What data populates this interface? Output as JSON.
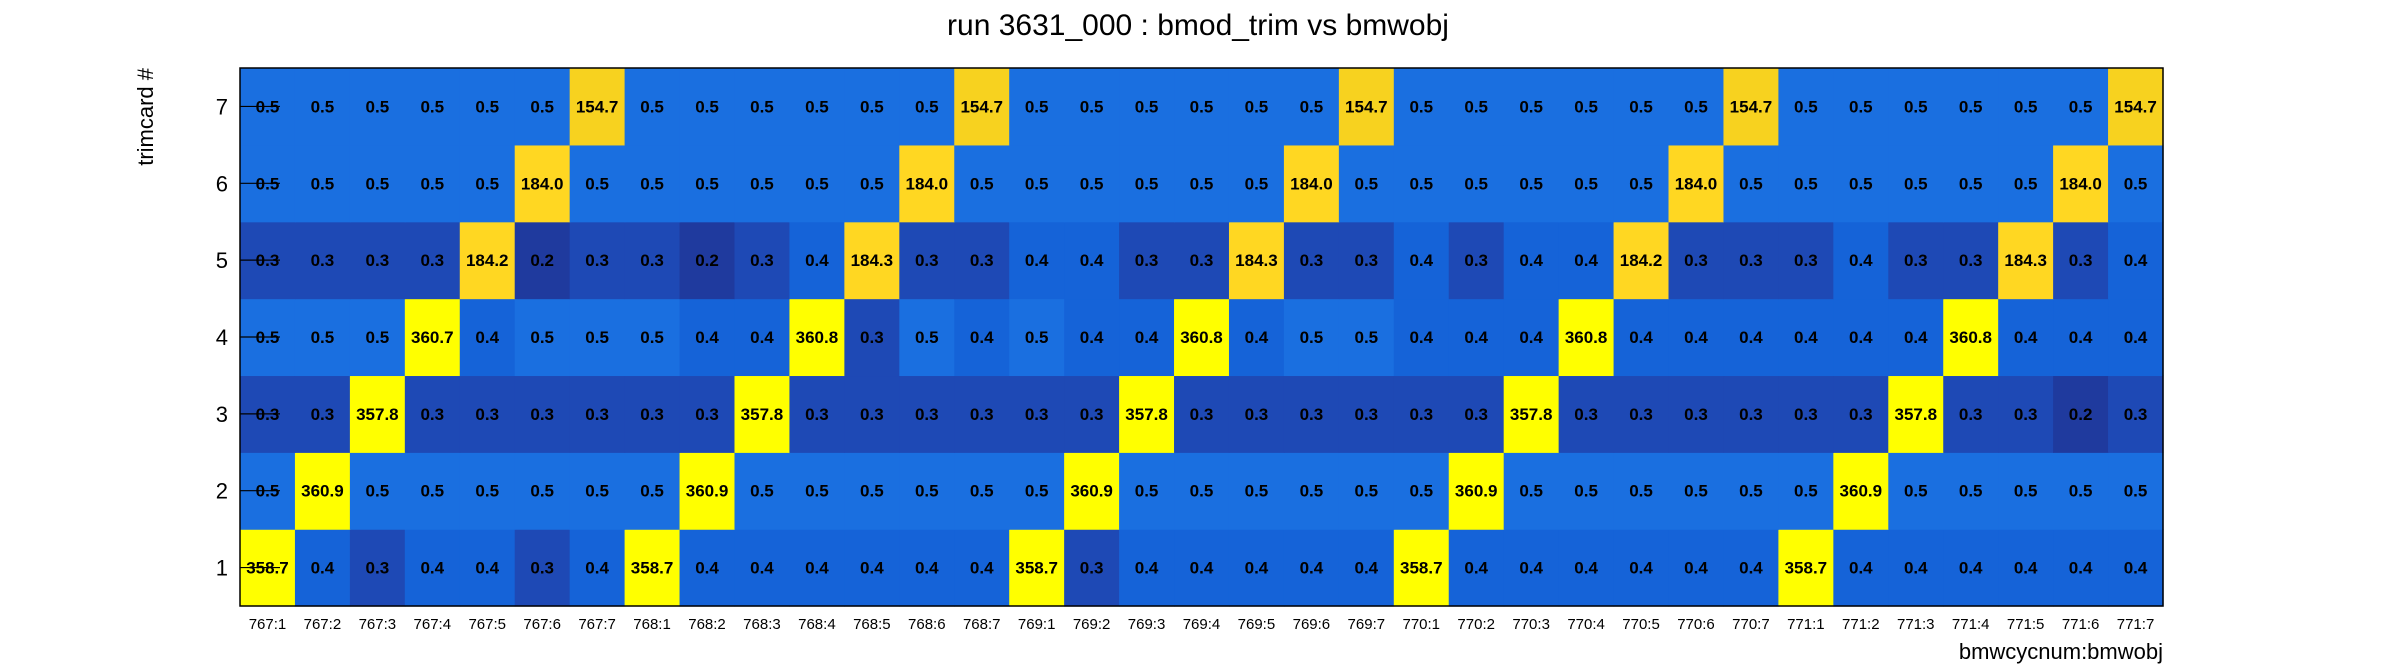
{
  "chart_data": {
    "type": "heatmap",
    "title": "run 3631_000 : bmod_trim vs bmwobj",
    "xlabel": "bmwcycnum:bmwobj",
    "ylabel": "trimcard #",
    "categories": [
      "767:1",
      "767:2",
      "767:3",
      "767:4",
      "767:5",
      "767:6",
      "767:7",
      "768:1",
      "768:2",
      "768:3",
      "768:4",
      "768:5",
      "768:6",
      "768:7",
      "769:1",
      "769:2",
      "769:3",
      "769:4",
      "769:5",
      "769:6",
      "769:7",
      "770:1",
      "770:2",
      "770:3",
      "770:4",
      "770:5",
      "770:6",
      "770:7",
      "771:1",
      "771:2",
      "771:3",
      "771:4",
      "771:5",
      "771:6",
      "771:7"
    ],
    "y_categories": [
      "1",
      "2",
      "3",
      "4",
      "5",
      "6",
      "7"
    ],
    "values": [
      [
        "358.7",
        "0.4",
        "0.3",
        "0.4",
        "0.4",
        "0.3",
        "0.4",
        "358.7",
        "0.4",
        "0.4",
        "0.4",
        "0.4",
        "0.4",
        "0.4",
        "358.7",
        "0.3",
        "0.4",
        "0.4",
        "0.4",
        "0.4",
        "0.4",
        "358.7",
        "0.4",
        "0.4",
        "0.4",
        "0.4",
        "0.4",
        "0.4",
        "358.7",
        "0.4",
        "0.4",
        "0.4",
        "0.4",
        "0.4",
        "0.4"
      ],
      [
        "0.5",
        "360.9",
        "0.5",
        "0.5",
        "0.5",
        "0.5",
        "0.5",
        "0.5",
        "360.9",
        "0.5",
        "0.5",
        "0.5",
        "0.5",
        "0.5",
        "0.5",
        "360.9",
        "0.5",
        "0.5",
        "0.5",
        "0.5",
        "0.5",
        "0.5",
        "360.9",
        "0.5",
        "0.5",
        "0.5",
        "0.5",
        "0.5",
        "0.5",
        "360.9",
        "0.5",
        "0.5",
        "0.5",
        "0.5",
        "0.5"
      ],
      [
        "0.3",
        "0.3",
        "357.8",
        "0.3",
        "0.3",
        "0.3",
        "0.3",
        "0.3",
        "0.3",
        "357.8",
        "0.3",
        "0.3",
        "0.3",
        "0.3",
        "0.3",
        "0.3",
        "357.8",
        "0.3",
        "0.3",
        "0.3",
        "0.3",
        "0.3",
        "0.3",
        "357.8",
        "0.3",
        "0.3",
        "0.3",
        "0.3",
        "0.3",
        "0.3",
        "357.8",
        "0.3",
        "0.3",
        "0.2",
        "0.3"
      ],
      [
        "0.5",
        "0.5",
        "0.5",
        "360.7",
        "0.4",
        "0.5",
        "0.5",
        "0.5",
        "0.4",
        "0.4",
        "360.8",
        "0.3",
        "0.5",
        "0.4",
        "0.5",
        "0.4",
        "0.4",
        "360.8",
        "0.4",
        "0.5",
        "0.5",
        "0.4",
        "0.4",
        "0.4",
        "360.8",
        "0.4",
        "0.4",
        "0.4",
        "0.4",
        "0.4",
        "0.4",
        "360.8",
        "0.4",
        "0.4",
        "0.4"
      ],
      [
        "0.3",
        "0.3",
        "0.3",
        "0.3",
        "184.2",
        "0.2",
        "0.3",
        "0.3",
        "0.2",
        "0.3",
        "0.4",
        "184.3",
        "0.3",
        "0.3",
        "0.4",
        "0.4",
        "0.3",
        "0.3",
        "184.3",
        "0.3",
        "0.3",
        "0.4",
        "0.3",
        "0.4",
        "0.4",
        "184.2",
        "0.3",
        "0.3",
        "0.3",
        "0.4",
        "0.3",
        "0.3",
        "184.3",
        "0.3",
        "0.4"
      ],
      [
        "0.5",
        "0.5",
        "0.5",
        "0.5",
        "0.5",
        "184.0",
        "0.5",
        "0.5",
        "0.5",
        "0.5",
        "0.5",
        "0.5",
        "184.0",
        "0.5",
        "0.5",
        "0.5",
        "0.5",
        "0.5",
        "0.5",
        "184.0",
        "0.5",
        "0.5",
        "0.5",
        "0.5",
        "0.5",
        "0.5",
        "184.0",
        "0.5",
        "0.5",
        "0.5",
        "0.5",
        "0.5",
        "0.5",
        "184.0",
        "0.5"
      ],
      [
        "0.5",
        "0.5",
        "0.5",
        "0.5",
        "0.5",
        "0.5",
        "154.7",
        "0.5",
        "0.5",
        "0.5",
        "0.5",
        "0.5",
        "0.5",
        "154.7",
        "0.5",
        "0.5",
        "0.5",
        "0.5",
        "0.5",
        "0.5",
        "154.7",
        "0.5",
        "0.5",
        "0.5",
        "0.5",
        "0.5",
        "0.5",
        "154.7",
        "0.5",
        "0.5",
        "0.5",
        "0.5",
        "0.5",
        "0.5",
        "154.7"
      ]
    ],
    "colors": {
      "low": "#1f3a9e",
      "low_mid": "#1e49b5",
      "mid": "#1563d8",
      "mid_alt": "#1a6fe0",
      "hot_150": "#f7d21f",
      "hot_180": "#ffd722",
      "hot_360": "#ffff00"
    }
  }
}
